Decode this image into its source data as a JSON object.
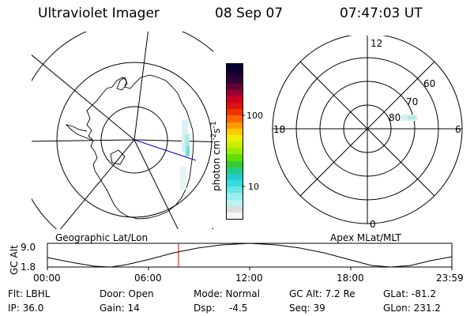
{
  "header": {
    "instrument": "Ultraviolet Imager",
    "date": "08 Sep 07",
    "time": "07:47:03 UT"
  },
  "geo_map": {
    "caption": "Geographic Lat/Lon"
  },
  "apex_map": {
    "caption": "Apex MLat/MLT",
    "mlt_labels": [
      "12",
      "18",
      "6",
      "0"
    ],
    "lat_labels": [
      "60",
      "70",
      "80"
    ]
  },
  "colorbar": {
    "unit_label": "photon cm",
    "exp1": "-2",
    "mid": "s",
    "exp2": "-1",
    "tick_labels": [
      "100",
      "10"
    ],
    "colors": [
      "#000033",
      "#1a0033",
      "#330033",
      "#660033",
      "#990033",
      "#cc0022",
      "#dd1111",
      "#ee3300",
      "#ff6600",
      "#ff9900",
      "#ffcc00",
      "#eeee00",
      "#ccee00",
      "#99ee00",
      "#66dd00",
      "#33cc33",
      "#22cc88",
      "#22cccc",
      "#33dddd",
      "#66e5e5",
      "#99eeee",
      "#bbf2f2",
      "#dddddd",
      "#f5f5f5"
    ]
  },
  "altitude_plot": {
    "ylabel": "GC Alt",
    "y_ticks": [
      "9.0",
      "1.8"
    ],
    "x_ticks": [
      "00:00",
      "06:00",
      "12:00",
      "18:00",
      "23:59"
    ]
  },
  "info_rows": [
    [
      "Flt: LBHL",
      "Door: Open",
      "Mode: Normal",
      "GC Alt: 7.2 Re",
      "GLat: -81.2"
    ],
    [
      "IP: 36.0",
      "Gain: 14",
      "Dsp:",
      "-4.5",
      "Seq: 39",
      "GLon: 231.2"
    ]
  ]
}
